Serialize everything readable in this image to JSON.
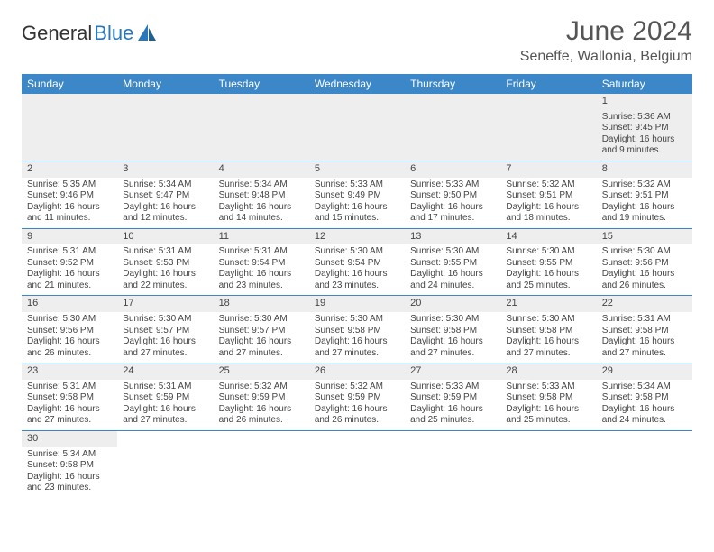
{
  "brand": {
    "part1": "General",
    "part2": "Blue"
  },
  "title": "June 2024",
  "location": "Seneffe, Wallonia, Belgium",
  "colors": {
    "header_bg": "#3b87c8",
    "header_fg": "#ffffff",
    "row_band": "#eeeeee",
    "row_border": "#3b87c8",
    "text": "#444444",
    "brand_blue": "#2a77bb"
  },
  "weekdays": [
    "Sunday",
    "Monday",
    "Tuesday",
    "Wednesday",
    "Thursday",
    "Friday",
    "Saturday"
  ],
  "weeks": [
    [
      null,
      null,
      null,
      null,
      null,
      null,
      {
        "d": "1",
        "sr": "Sunrise: 5:36 AM",
        "ss": "Sunset: 9:45 PM",
        "dl1": "Daylight: 16 hours",
        "dl2": "and 9 minutes."
      }
    ],
    [
      {
        "d": "2",
        "sr": "Sunrise: 5:35 AM",
        "ss": "Sunset: 9:46 PM",
        "dl1": "Daylight: 16 hours",
        "dl2": "and 11 minutes."
      },
      {
        "d": "3",
        "sr": "Sunrise: 5:34 AM",
        "ss": "Sunset: 9:47 PM",
        "dl1": "Daylight: 16 hours",
        "dl2": "and 12 minutes."
      },
      {
        "d": "4",
        "sr": "Sunrise: 5:34 AM",
        "ss": "Sunset: 9:48 PM",
        "dl1": "Daylight: 16 hours",
        "dl2": "and 14 minutes."
      },
      {
        "d": "5",
        "sr": "Sunrise: 5:33 AM",
        "ss": "Sunset: 9:49 PM",
        "dl1": "Daylight: 16 hours",
        "dl2": "and 15 minutes."
      },
      {
        "d": "6",
        "sr": "Sunrise: 5:33 AM",
        "ss": "Sunset: 9:50 PM",
        "dl1": "Daylight: 16 hours",
        "dl2": "and 17 minutes."
      },
      {
        "d": "7",
        "sr": "Sunrise: 5:32 AM",
        "ss": "Sunset: 9:51 PM",
        "dl1": "Daylight: 16 hours",
        "dl2": "and 18 minutes."
      },
      {
        "d": "8",
        "sr": "Sunrise: 5:32 AM",
        "ss": "Sunset: 9:51 PM",
        "dl1": "Daylight: 16 hours",
        "dl2": "and 19 minutes."
      }
    ],
    [
      {
        "d": "9",
        "sr": "Sunrise: 5:31 AM",
        "ss": "Sunset: 9:52 PM",
        "dl1": "Daylight: 16 hours",
        "dl2": "and 21 minutes."
      },
      {
        "d": "10",
        "sr": "Sunrise: 5:31 AM",
        "ss": "Sunset: 9:53 PM",
        "dl1": "Daylight: 16 hours",
        "dl2": "and 22 minutes."
      },
      {
        "d": "11",
        "sr": "Sunrise: 5:31 AM",
        "ss": "Sunset: 9:54 PM",
        "dl1": "Daylight: 16 hours",
        "dl2": "and 23 minutes."
      },
      {
        "d": "12",
        "sr": "Sunrise: 5:30 AM",
        "ss": "Sunset: 9:54 PM",
        "dl1": "Daylight: 16 hours",
        "dl2": "and 23 minutes."
      },
      {
        "d": "13",
        "sr": "Sunrise: 5:30 AM",
        "ss": "Sunset: 9:55 PM",
        "dl1": "Daylight: 16 hours",
        "dl2": "and 24 minutes."
      },
      {
        "d": "14",
        "sr": "Sunrise: 5:30 AM",
        "ss": "Sunset: 9:55 PM",
        "dl1": "Daylight: 16 hours",
        "dl2": "and 25 minutes."
      },
      {
        "d": "15",
        "sr": "Sunrise: 5:30 AM",
        "ss": "Sunset: 9:56 PM",
        "dl1": "Daylight: 16 hours",
        "dl2": "and 26 minutes."
      }
    ],
    [
      {
        "d": "16",
        "sr": "Sunrise: 5:30 AM",
        "ss": "Sunset: 9:56 PM",
        "dl1": "Daylight: 16 hours",
        "dl2": "and 26 minutes."
      },
      {
        "d": "17",
        "sr": "Sunrise: 5:30 AM",
        "ss": "Sunset: 9:57 PM",
        "dl1": "Daylight: 16 hours",
        "dl2": "and 27 minutes."
      },
      {
        "d": "18",
        "sr": "Sunrise: 5:30 AM",
        "ss": "Sunset: 9:57 PM",
        "dl1": "Daylight: 16 hours",
        "dl2": "and 27 minutes."
      },
      {
        "d": "19",
        "sr": "Sunrise: 5:30 AM",
        "ss": "Sunset: 9:58 PM",
        "dl1": "Daylight: 16 hours",
        "dl2": "and 27 minutes."
      },
      {
        "d": "20",
        "sr": "Sunrise: 5:30 AM",
        "ss": "Sunset: 9:58 PM",
        "dl1": "Daylight: 16 hours",
        "dl2": "and 27 minutes."
      },
      {
        "d": "21",
        "sr": "Sunrise: 5:30 AM",
        "ss": "Sunset: 9:58 PM",
        "dl1": "Daylight: 16 hours",
        "dl2": "and 27 minutes."
      },
      {
        "d": "22",
        "sr": "Sunrise: 5:31 AM",
        "ss": "Sunset: 9:58 PM",
        "dl1": "Daylight: 16 hours",
        "dl2": "and 27 minutes."
      }
    ],
    [
      {
        "d": "23",
        "sr": "Sunrise: 5:31 AM",
        "ss": "Sunset: 9:58 PM",
        "dl1": "Daylight: 16 hours",
        "dl2": "and 27 minutes."
      },
      {
        "d": "24",
        "sr": "Sunrise: 5:31 AM",
        "ss": "Sunset: 9:59 PM",
        "dl1": "Daylight: 16 hours",
        "dl2": "and 27 minutes."
      },
      {
        "d": "25",
        "sr": "Sunrise: 5:32 AM",
        "ss": "Sunset: 9:59 PM",
        "dl1": "Daylight: 16 hours",
        "dl2": "and 26 minutes."
      },
      {
        "d": "26",
        "sr": "Sunrise: 5:32 AM",
        "ss": "Sunset: 9:59 PM",
        "dl1": "Daylight: 16 hours",
        "dl2": "and 26 minutes."
      },
      {
        "d": "27",
        "sr": "Sunrise: 5:33 AM",
        "ss": "Sunset: 9:59 PM",
        "dl1": "Daylight: 16 hours",
        "dl2": "and 25 minutes."
      },
      {
        "d": "28",
        "sr": "Sunrise: 5:33 AM",
        "ss": "Sunset: 9:58 PM",
        "dl1": "Daylight: 16 hours",
        "dl2": "and 25 minutes."
      },
      {
        "d": "29",
        "sr": "Sunrise: 5:34 AM",
        "ss": "Sunset: 9:58 PM",
        "dl1": "Daylight: 16 hours",
        "dl2": "and 24 minutes."
      }
    ],
    [
      {
        "d": "30",
        "sr": "Sunrise: 5:34 AM",
        "ss": "Sunset: 9:58 PM",
        "dl1": "Daylight: 16 hours",
        "dl2": "and 23 minutes."
      },
      null,
      null,
      null,
      null,
      null,
      null
    ]
  ]
}
